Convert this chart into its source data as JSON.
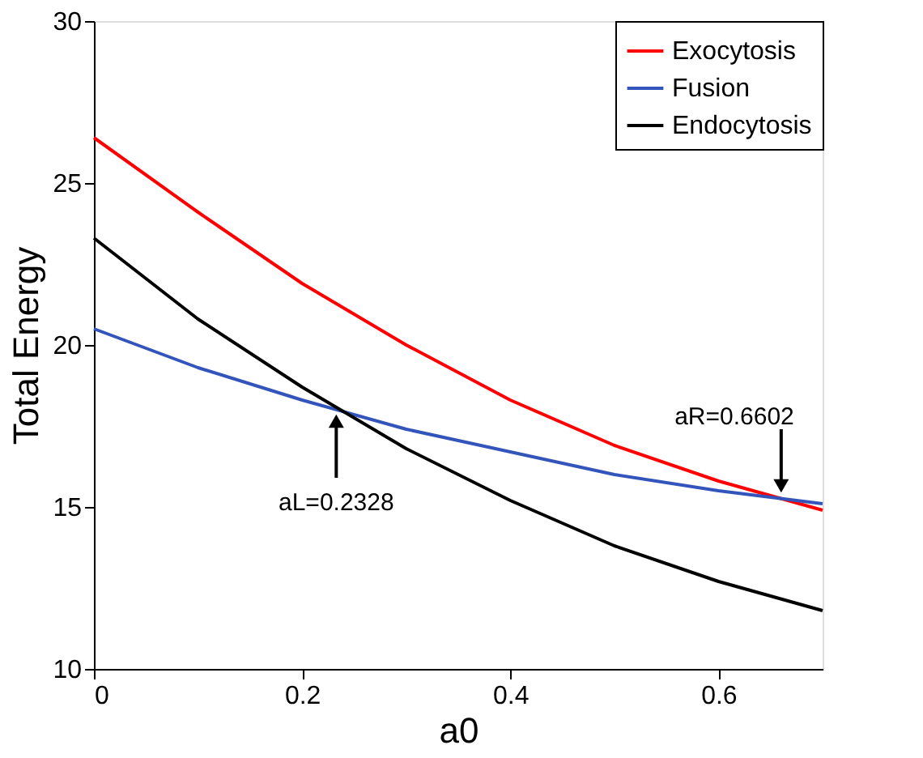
{
  "chart_data": {
    "type": "line",
    "xlabel": "a0",
    "ylabel": "Total Energy",
    "x": [
      0,
      0.1,
      0.2,
      0.3,
      0.4,
      0.5,
      0.6,
      0.7
    ],
    "series": [
      {
        "name": "Exocytosis",
        "color": "#ff0000",
        "values": [
          26.4,
          24.1,
          21.9,
          20.0,
          18.3,
          16.9,
          15.8,
          14.9
        ]
      },
      {
        "name": "Fusion",
        "color": "#3355bb",
        "values": [
          20.5,
          19.3,
          18.3,
          17.4,
          16.7,
          16.0,
          15.5,
          15.1
        ]
      },
      {
        "name": "Endocytosis",
        "color": "#000000",
        "values": [
          23.3,
          20.8,
          18.7,
          16.8,
          15.2,
          13.8,
          12.7,
          11.8
        ]
      }
    ],
    "xlim": [
      0,
      0.7
    ],
    "xticks": [
      0,
      0.2,
      0.4,
      0.6
    ],
    "ylim": [
      10,
      30
    ],
    "yticks": [
      10,
      15,
      20,
      25,
      30
    ],
    "annotations": [
      {
        "text": "aL=0.2328",
        "x": 0.2328,
        "y": 18.0
      },
      {
        "text": "aR=0.6602",
        "x": 0.6602,
        "y": 15.3
      }
    ],
    "grid": false,
    "legend": "top right",
    "marker": "none",
    "line_style": "solid"
  }
}
